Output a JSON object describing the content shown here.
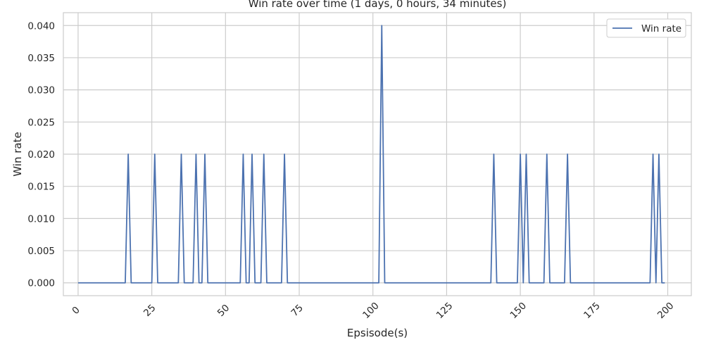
{
  "chart_data": {
    "type": "line",
    "title": "Win rate over time (1 days, 0 hours, 34 minutes)",
    "xlabel": "Epsisode(s)",
    "ylabel": "Win rate",
    "xlim": [
      -5,
      208
    ],
    "ylim": [
      -0.002,
      0.042
    ],
    "xticks": [
      0,
      25,
      50,
      75,
      100,
      125,
      150,
      175,
      200
    ],
    "yticks": [
      0.0,
      0.005,
      0.01,
      0.015,
      0.02,
      0.025,
      0.03,
      0.035,
      0.04
    ],
    "ytick_labels": [
      "0.000",
      "0.005",
      "0.010",
      "0.015",
      "0.020",
      "0.025",
      "0.030",
      "0.035",
      "0.040"
    ],
    "grid": true,
    "legend_position": "top-right",
    "series": [
      {
        "name": "Win rate",
        "color": "#4c72b0",
        "points": [
          [
            0,
            0
          ],
          [
            16,
            0
          ],
          [
            17,
            0.02
          ],
          [
            18,
            0
          ],
          [
            25,
            0
          ],
          [
            26,
            0.02
          ],
          [
            27,
            0
          ],
          [
            34,
            0
          ],
          [
            35,
            0.02
          ],
          [
            36,
            0
          ],
          [
            39,
            0
          ],
          [
            40,
            0.02
          ],
          [
            41,
            0
          ],
          [
            42,
            0
          ],
          [
            43,
            0.02
          ],
          [
            44,
            0
          ],
          [
            55,
            0
          ],
          [
            56,
            0.02
          ],
          [
            57,
            0
          ],
          [
            58,
            0
          ],
          [
            59,
            0.02
          ],
          [
            60,
            0
          ],
          [
            62,
            0
          ],
          [
            63,
            0.02
          ],
          [
            64,
            0
          ],
          [
            69,
            0
          ],
          [
            70,
            0.02
          ],
          [
            71,
            0
          ],
          [
            102,
            0
          ],
          [
            103,
            0.04
          ],
          [
            104,
            0
          ],
          [
            140,
            0
          ],
          [
            141,
            0.02
          ],
          [
            142,
            0
          ],
          [
            149,
            0
          ],
          [
            150,
            0.02
          ],
          [
            151,
            0
          ],
          [
            152,
            0.02
          ],
          [
            153,
            0
          ],
          [
            158,
            0
          ],
          [
            159,
            0.02
          ],
          [
            160,
            0
          ],
          [
            165,
            0
          ],
          [
            166,
            0.02
          ],
          [
            167,
            0
          ],
          [
            194,
            0
          ],
          [
            195,
            0.02
          ],
          [
            196,
            0
          ],
          [
            197,
            0.02
          ],
          [
            198,
            0
          ],
          [
            199,
            0
          ]
        ]
      }
    ]
  }
}
